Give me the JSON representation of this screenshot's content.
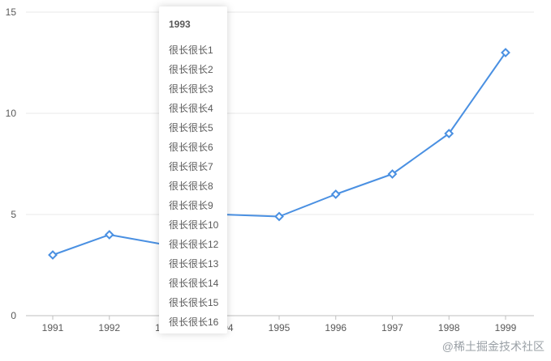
{
  "chart_data": {
    "type": "line",
    "categories": [
      "1991",
      "1992",
      "1993",
      "1994",
      "1995",
      "1996",
      "1997",
      "1998",
      "1999"
    ],
    "series": [
      {
        "values": [
          3,
          4,
          3.5,
          5,
          4.9,
          6,
          7,
          9,
          13
        ]
      }
    ],
    "y_ticks": [
      "0",
      "5",
      "10",
      "15"
    ],
    "ylim": [
      0,
      15
    ],
    "grid": "horizontal",
    "line_color": "#4a90e2",
    "marker": "diamond",
    "title": "",
    "xlabel": "",
    "ylabel": ""
  },
  "tooltip": {
    "title": "1993",
    "items": [
      "很长很长1",
      "很长很长2",
      "很长很长3",
      "很长很长4",
      "很长很长5",
      "很长很长6",
      "很长很长7",
      "很长很长8",
      "很长很长9",
      "很长很长10",
      "很长很长12",
      "很长很长13",
      "很长很长14",
      "很长很长15",
      "很长很长16"
    ]
  },
  "watermark": "@稀土掘金技术社区"
}
